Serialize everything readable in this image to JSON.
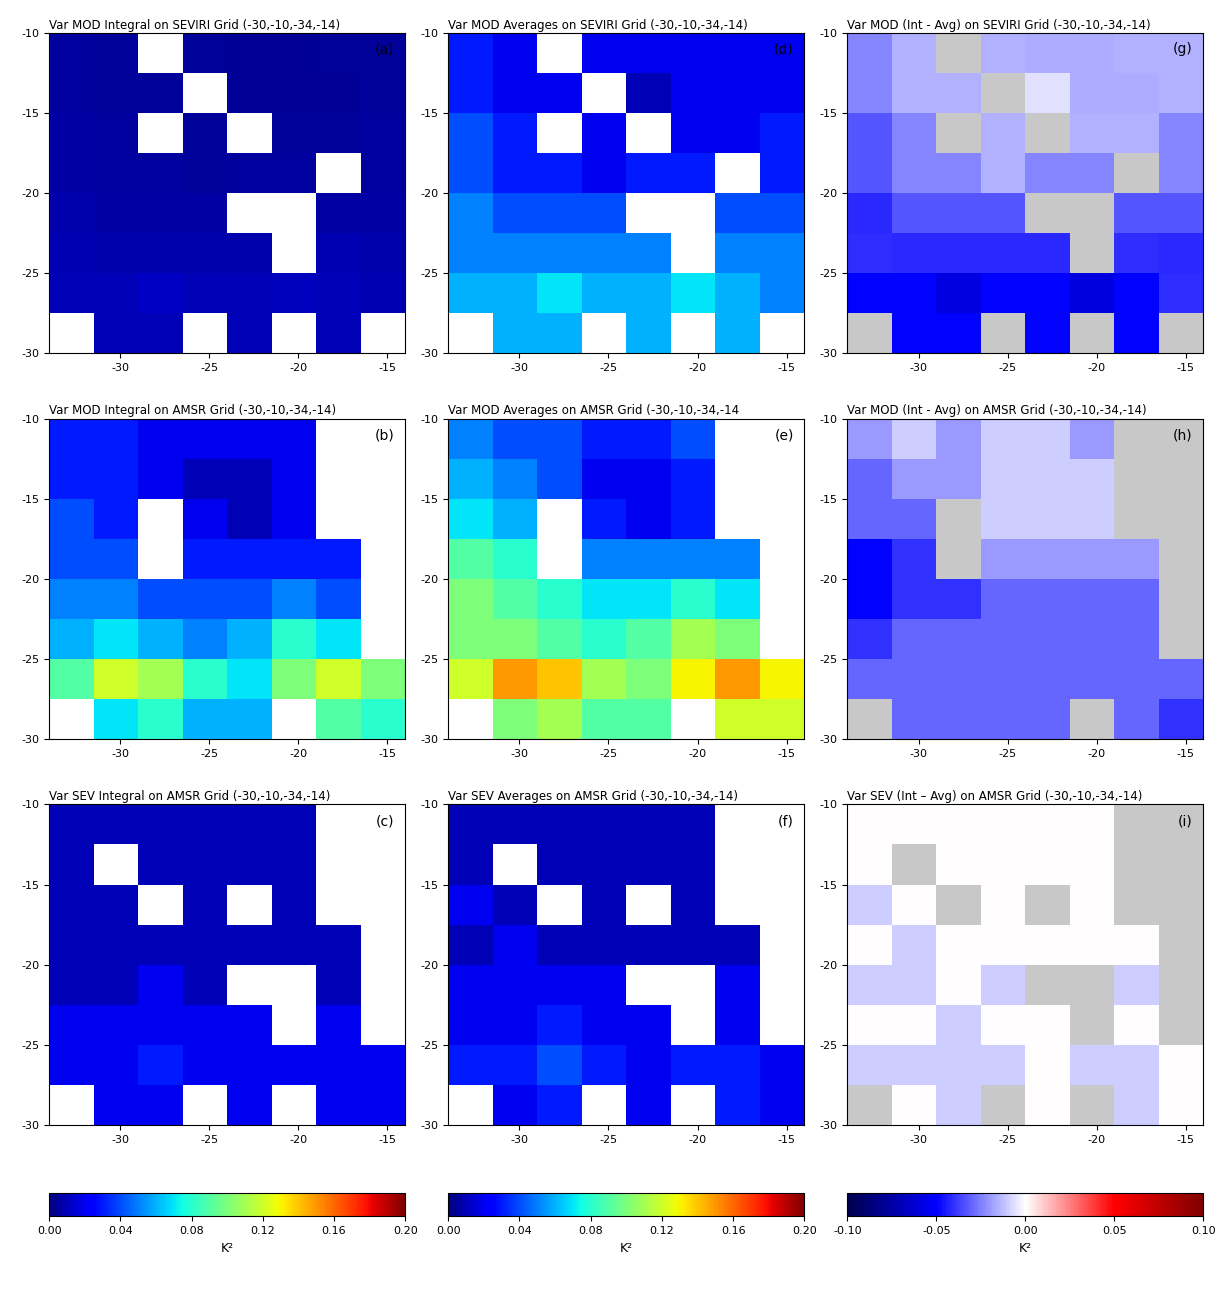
{
  "chart_data": [
    {
      "type": "heatmap",
      "title": "Var MOD Integral on SEVIRI Grid (-30,-10,-34,-14)",
      "panel_label": "(a)",
      "xlim": [
        -34,
        -14
      ],
      "ylim": [
        -30,
        -10
      ],
      "xticks": [
        -30,
        -25,
        -20,
        -15
      ],
      "yticks": [
        -30,
        -25,
        -20,
        -15,
        -10
      ],
      "x_edges": [
        -34,
        -31.5,
        -29,
        -26.5,
        -24,
        -21.5,
        -19,
        -16.5,
        -14
      ],
      "y_edges": [
        -10,
        -12.5,
        -15,
        -17.5,
        -20,
        -22.5,
        -25,
        -27.5,
        -30
      ],
      "cells": [
        [
          0.006,
          0.005,
          null,
          0.005,
          0.004,
          0.004,
          0.005,
          0.005
        ],
        [
          0.006,
          0.005,
          0.005,
          null,
          0.004,
          0.004,
          0.004,
          0.005
        ],
        [
          0.007,
          0.006,
          null,
          0.005,
          null,
          0.005,
          0.005,
          0.006
        ],
        [
          0.007,
          0.006,
          0.006,
          0.005,
          0.006,
          0.006,
          null,
          0.006
        ],
        [
          0.008,
          0.007,
          0.007,
          0.007,
          null,
          null,
          0.007,
          0.007
        ],
        [
          0.009,
          0.008,
          0.008,
          0.008,
          0.008,
          null,
          0.009,
          0.008
        ],
        [
          0.01,
          0.01,
          0.012,
          0.01,
          0.01,
          0.011,
          0.01,
          0.009
        ],
        [
          null,
          0.01,
          0.01,
          null,
          0.01,
          null,
          0.01,
          null
        ]
      ]
    },
    {
      "type": "heatmap",
      "title": "Var MOD Integral on AMSR Grid (-30,-10,-34,-14)",
      "panel_label": "(b)",
      "xlim": [
        -34,
        -14
      ],
      "ylim": [
        -30,
        -10
      ],
      "xticks": [
        -30,
        -25,
        -20,
        -15
      ],
      "yticks": [
        -30,
        -25,
        -20,
        -15,
        -10
      ],
      "x_edges": [
        -34,
        -31.5,
        -29,
        -26.5,
        -24,
        -21.5,
        -19,
        -16.5,
        -14
      ],
      "y_edges": [
        -10,
        -12.5,
        -15,
        -17.5,
        -20,
        -22.5,
        -25,
        -27.5,
        -30
      ],
      "cells": [
        [
          0.03,
          0.03,
          0.02,
          0.02,
          0.02,
          0.02,
          null,
          null
        ],
        [
          0.03,
          0.03,
          0.02,
          0.01,
          0.01,
          0.02,
          null,
          null
        ],
        [
          0.04,
          0.03,
          null,
          0.02,
          0.01,
          0.02,
          null,
          null
        ],
        [
          0.04,
          0.04,
          null,
          0.03,
          0.03,
          0.03,
          0.03,
          null
        ],
        [
          0.05,
          0.05,
          0.04,
          0.04,
          0.04,
          0.05,
          0.04,
          null
        ],
        [
          0.06,
          0.07,
          0.06,
          0.05,
          0.06,
          0.08,
          0.07,
          null
        ],
        [
          0.09,
          0.12,
          0.11,
          0.08,
          0.07,
          0.1,
          0.12,
          0.1
        ],
        [
          null,
          0.07,
          0.08,
          0.06,
          0.06,
          null,
          0.09,
          0.08
        ]
      ]
    },
    {
      "type": "heatmap",
      "title": "Var SEV Integral on AMSR Grid (-30,-10,-34,-14)",
      "panel_label": "(c)",
      "xlim": [
        -34,
        -14
      ],
      "ylim": [
        -30,
        -10
      ],
      "xticks": [
        -30,
        -25,
        -20,
        -15
      ],
      "yticks": [
        -30,
        -25,
        -20,
        -15,
        -10
      ],
      "x_edges": [
        -34,
        -31.5,
        -29,
        -26.5,
        -24,
        -21.5,
        -19,
        -16.5,
        -14
      ],
      "y_edges": [
        -10,
        -12.5,
        -15,
        -17.5,
        -20,
        -22.5,
        -25,
        -27.5,
        -30
      ],
      "cells": [
        [
          0.01,
          0.01,
          0.01,
          0.01,
          0.01,
          0.01,
          null,
          null
        ],
        [
          0.01,
          null,
          0.01,
          0.01,
          0.01,
          0.01,
          null,
          null
        ],
        [
          0.01,
          0.01,
          null,
          0.01,
          null,
          0.01,
          null,
          null
        ],
        [
          0.01,
          0.01,
          0.01,
          0.01,
          0.01,
          0.01,
          0.01,
          null
        ],
        [
          0.01,
          0.01,
          0.02,
          0.01,
          null,
          null,
          0.01,
          null
        ],
        [
          0.02,
          0.02,
          0.02,
          0.02,
          0.02,
          null,
          0.02,
          null
        ],
        [
          0.02,
          0.02,
          0.03,
          0.02,
          0.02,
          0.02,
          0.02,
          0.02
        ],
        [
          null,
          0.02,
          0.02,
          null,
          0.02,
          null,
          0.02,
          0.02
        ]
      ],
      "colorbar": {
        "range": [
          0,
          0.2
        ],
        "label": "K²",
        "ticks": [
          {
            "value": 0,
            "label": "0.00"
          },
          {
            "value": 0.04,
            "label": "0.04"
          },
          {
            "value": 0.08,
            "label": "0.08"
          },
          {
            "value": 0.12,
            "label": "0.12"
          },
          {
            "value": 0.16,
            "label": "0.16"
          },
          {
            "value": 0.2,
            "label": "0.20"
          }
        ]
      }
    },
    {
      "type": "heatmap",
      "title": "Var MOD Averages on SEVIRI Grid (-30,-10,-34,-14)",
      "panel_label": "(d)",
      "xlim": [
        -34,
        -14
      ],
      "ylim": [
        -30,
        -10
      ],
      "xticks": [
        -30,
        -25,
        -20,
        -15
      ],
      "yticks": [
        -30,
        -25,
        -20,
        -15,
        -10
      ],
      "x_edges": [
        -34,
        -31.5,
        -29,
        -26.5,
        -24,
        -21.5,
        -19,
        -16.5,
        -14
      ],
      "y_edges": [
        -10,
        -12.5,
        -15,
        -17.5,
        -20,
        -22.5,
        -25,
        -27.5,
        -30
      ],
      "cells": [
        [
          0.03,
          0.02,
          null,
          0.02,
          0.02,
          0.02,
          0.02,
          0.02
        ],
        [
          0.03,
          0.02,
          0.02,
          null,
          0.01,
          0.02,
          0.02,
          0.02
        ],
        [
          0.04,
          0.03,
          null,
          0.02,
          null,
          0.02,
          0.02,
          0.03
        ],
        [
          0.04,
          0.03,
          0.03,
          0.02,
          0.03,
          0.03,
          null,
          0.03
        ],
        [
          0.05,
          0.04,
          0.04,
          0.04,
          null,
          null,
          0.04,
          0.04
        ],
        [
          0.05,
          0.05,
          0.05,
          0.05,
          0.05,
          null,
          0.05,
          0.05
        ],
        [
          0.06,
          0.06,
          0.07,
          0.06,
          0.06,
          0.07,
          0.06,
          0.05
        ],
        [
          null,
          0.06,
          0.06,
          null,
          0.06,
          null,
          0.06,
          null
        ]
      ]
    },
    {
      "type": "heatmap",
      "title": "Var MOD Averages on AMSR Grid (-30,-10,-34,-14",
      "panel_label": "(e)",
      "xlim": [
        -34,
        -14
      ],
      "ylim": [
        -30,
        -10
      ],
      "xticks": [
        -30,
        -25,
        -20,
        -15
      ],
      "yticks": [
        -30,
        -25,
        -20,
        -15,
        -10
      ],
      "x_edges": [
        -34,
        -31.5,
        -29,
        -26.5,
        -24,
        -21.5,
        -19,
        -16.5,
        -14
      ],
      "y_edges": [
        -10,
        -12.5,
        -15,
        -17.5,
        -20,
        -22.5,
        -25,
        -27.5,
        -30
      ],
      "cells": [
        [
          0.05,
          0.04,
          0.04,
          0.03,
          0.03,
          0.04,
          null,
          null
        ],
        [
          0.06,
          0.05,
          0.04,
          0.02,
          0.02,
          0.03,
          null,
          null
        ],
        [
          0.07,
          0.06,
          null,
          0.03,
          0.02,
          0.03,
          null,
          null
        ],
        [
          0.09,
          0.08,
          null,
          0.05,
          0.05,
          0.05,
          0.05,
          null
        ],
        [
          0.1,
          0.09,
          0.08,
          0.07,
          0.07,
          0.08,
          0.07,
          null
        ],
        [
          0.1,
          0.1,
          0.09,
          0.08,
          0.09,
          0.11,
          0.1,
          null
        ],
        [
          0.12,
          0.15,
          0.14,
          0.11,
          0.1,
          0.13,
          0.15,
          0.13
        ],
        [
          null,
          0.1,
          0.11,
          0.09,
          0.09,
          null,
          0.12,
          0.12
        ]
      ]
    },
    {
      "type": "heatmap",
      "title": "Var SEV Averages on AMSR Grid (-30,-10,-34,-14)",
      "panel_label": "(f)",
      "xlim": [
        -34,
        -14
      ],
      "ylim": [
        -30,
        -10
      ],
      "xticks": [
        -30,
        -25,
        -20,
        -15
      ],
      "yticks": [
        -30,
        -25,
        -20,
        -15,
        -10
      ],
      "x_edges": [
        -34,
        -31.5,
        -29,
        -26.5,
        -24,
        -21.5,
        -19,
        -16.5,
        -14
      ],
      "y_edges": [
        -10,
        -12.5,
        -15,
        -17.5,
        -20,
        -22.5,
        -25,
        -27.5,
        -30
      ],
      "cells": [
        [
          0.01,
          0.01,
          0.01,
          0.01,
          0.01,
          0.01,
          null,
          null
        ],
        [
          0.01,
          null,
          0.01,
          0.01,
          0.01,
          0.01,
          null,
          null
        ],
        [
          0.02,
          0.01,
          null,
          0.01,
          null,
          0.01,
          null,
          null
        ],
        [
          0.01,
          0.02,
          0.01,
          0.01,
          0.01,
          0.01,
          0.01,
          null
        ],
        [
          0.02,
          0.02,
          0.02,
          0.02,
          null,
          null,
          0.02,
          null
        ],
        [
          0.02,
          0.02,
          0.03,
          0.02,
          0.02,
          null,
          0.02,
          null
        ],
        [
          0.03,
          0.03,
          0.04,
          0.03,
          0.02,
          0.03,
          0.03,
          0.02
        ],
        [
          null,
          0.02,
          0.03,
          null,
          0.02,
          null,
          0.03,
          0.02
        ]
      ],
      "colorbar": {
        "range": [
          0,
          0.2
        ],
        "label": "K²",
        "ticks": [
          {
            "value": 0,
            "label": "0.00"
          },
          {
            "value": 0.04,
            "label": "0.04"
          },
          {
            "value": 0.08,
            "label": "0.08"
          },
          {
            "value": 0.12,
            "label": "0.12"
          },
          {
            "value": 0.16,
            "label": "0.16"
          },
          {
            "value": 0.2,
            "label": "0.20"
          }
        ]
      }
    },
    {
      "type": "heatmap",
      "title": "Var MOD (Int - Avg) on SEVIRI Grid (-30,-10,-34,-14)",
      "panel_label": "(g)",
      "xlim": [
        -34,
        -14
      ],
      "ylim": [
        -30,
        -10
      ],
      "xticks": [
        -30,
        -25,
        -20,
        -15
      ],
      "yticks": [
        -30,
        -25,
        -20,
        -15,
        -10
      ],
      "x_edges": [
        -34,
        -31.5,
        -29,
        -26.5,
        -24,
        -21.5,
        -19,
        -16.5,
        -14
      ],
      "y_edges": [
        -10,
        -12.5,
        -15,
        -17.5,
        -20,
        -22.5,
        -25,
        -27.5,
        -30
      ],
      "cells": [
        [
          -0.024,
          -0.015,
          null,
          -0.015,
          -0.016,
          -0.016,
          -0.015,
          -0.015
        ],
        [
          -0.024,
          -0.015,
          -0.015,
          null,
          -0.006,
          -0.016,
          -0.016,
          -0.015
        ],
        [
          -0.033,
          -0.024,
          null,
          -0.015,
          null,
          -0.015,
          -0.015,
          -0.024
        ],
        [
          -0.033,
          -0.024,
          -0.024,
          -0.015,
          -0.024,
          -0.024,
          null,
          -0.024
        ],
        [
          -0.042,
          -0.033,
          -0.033,
          -0.033,
          null,
          null,
          -0.033,
          -0.033
        ],
        [
          -0.041,
          -0.042,
          -0.042,
          -0.042,
          -0.042,
          null,
          -0.041,
          -0.042
        ],
        [
          -0.05,
          -0.05,
          -0.058,
          -0.05,
          -0.05,
          -0.059,
          -0.05,
          -0.041
        ],
        [
          null,
          -0.05,
          -0.05,
          null,
          -0.05,
          null,
          -0.05,
          null
        ]
      ]
    },
    {
      "type": "heatmap",
      "title": "Var MOD (Int - Avg) on AMSR Grid (-30,-10,-34,-14)",
      "panel_label": "(h)",
      "xlim": [
        -34,
        -14
      ],
      "ylim": [
        -30,
        -10
      ],
      "xticks": [
        -30,
        -25,
        -20,
        -15
      ],
      "yticks": [
        -30,
        -25,
        -20,
        -15,
        -10
      ],
      "x_edges": [
        -34,
        -31.5,
        -29,
        -26.5,
        -24,
        -21.5,
        -19,
        -16.5,
        -14
      ],
      "y_edges": [
        -10,
        -12.5,
        -15,
        -17.5,
        -20,
        -22.5,
        -25,
        -27.5,
        -30
      ],
      "cells": [
        [
          -0.02,
          -0.01,
          -0.02,
          -0.01,
          -0.01,
          -0.02,
          null,
          null
        ],
        [
          -0.03,
          -0.02,
          -0.02,
          -0.01,
          -0.01,
          -0.01,
          null,
          null
        ],
        [
          -0.03,
          -0.03,
          null,
          -0.01,
          -0.01,
          -0.01,
          null,
          null
        ],
        [
          -0.05,
          -0.04,
          null,
          -0.02,
          -0.02,
          -0.02,
          -0.02,
          null
        ],
        [
          -0.05,
          -0.04,
          -0.04,
          -0.03,
          -0.03,
          -0.03,
          -0.03,
          null
        ],
        [
          -0.04,
          -0.03,
          -0.03,
          -0.03,
          -0.03,
          -0.03,
          -0.03,
          null
        ],
        [
          -0.03,
          -0.03,
          -0.03,
          -0.03,
          -0.03,
          -0.03,
          -0.03,
          -0.03
        ],
        [
          null,
          -0.03,
          -0.03,
          -0.03,
          -0.03,
          null,
          -0.03,
          -0.04
        ]
      ]
    },
    {
      "type": "heatmap",
      "title": "Var SEV (Int – Avg) on AMSR Grid (-30,-10,-34,-14)",
      "panel_label": "(i)",
      "xlim": [
        -34,
        -14
      ],
      "ylim": [
        -30,
        -10
      ],
      "xticks": [
        -30,
        -25,
        -20,
        -15
      ],
      "yticks": [
        -30,
        -25,
        -20,
        -15,
        -10
      ],
      "x_edges": [
        -34,
        -31.5,
        -29,
        -26.5,
        -24,
        -21.5,
        -19,
        -16.5,
        -14
      ],
      "y_edges": [
        -10,
        -12.5,
        -15,
        -17.5,
        -20,
        -22.5,
        -25,
        -27.5,
        -30
      ],
      "cells": [
        [
          0,
          0,
          0,
          0,
          0,
          0,
          null,
          null
        ],
        [
          0,
          null,
          0,
          0,
          0,
          0,
          null,
          null
        ],
        [
          -0.01,
          0,
          null,
          0,
          null,
          0,
          null,
          null
        ],
        [
          0,
          -0.01,
          0,
          0,
          0,
          0,
          0,
          null
        ],
        [
          -0.01,
          -0.01,
          0,
          -0.01,
          null,
          null,
          -0.01,
          null
        ],
        [
          0,
          0,
          -0.01,
          0,
          0,
          null,
          0,
          null
        ],
        [
          -0.01,
          -0.01,
          -0.01,
          -0.01,
          0,
          -0.01,
          -0.01,
          0
        ],
        [
          null,
          0,
          -0.01,
          null,
          0,
          null,
          -0.01,
          0
        ]
      ],
      "colorbar": {
        "range": [
          -0.1,
          0.1
        ],
        "label": "K²",
        "ticks": [
          {
            "value": -0.1,
            "label": "-0.10"
          },
          {
            "value": -0.05,
            "label": "-0.05"
          },
          {
            "value": 0,
            "label": "0.00"
          },
          {
            "value": 0.05,
            "label": "0.05"
          },
          {
            "value": 0.1,
            "label": "0.10"
          }
        ]
      }
    }
  ]
}
